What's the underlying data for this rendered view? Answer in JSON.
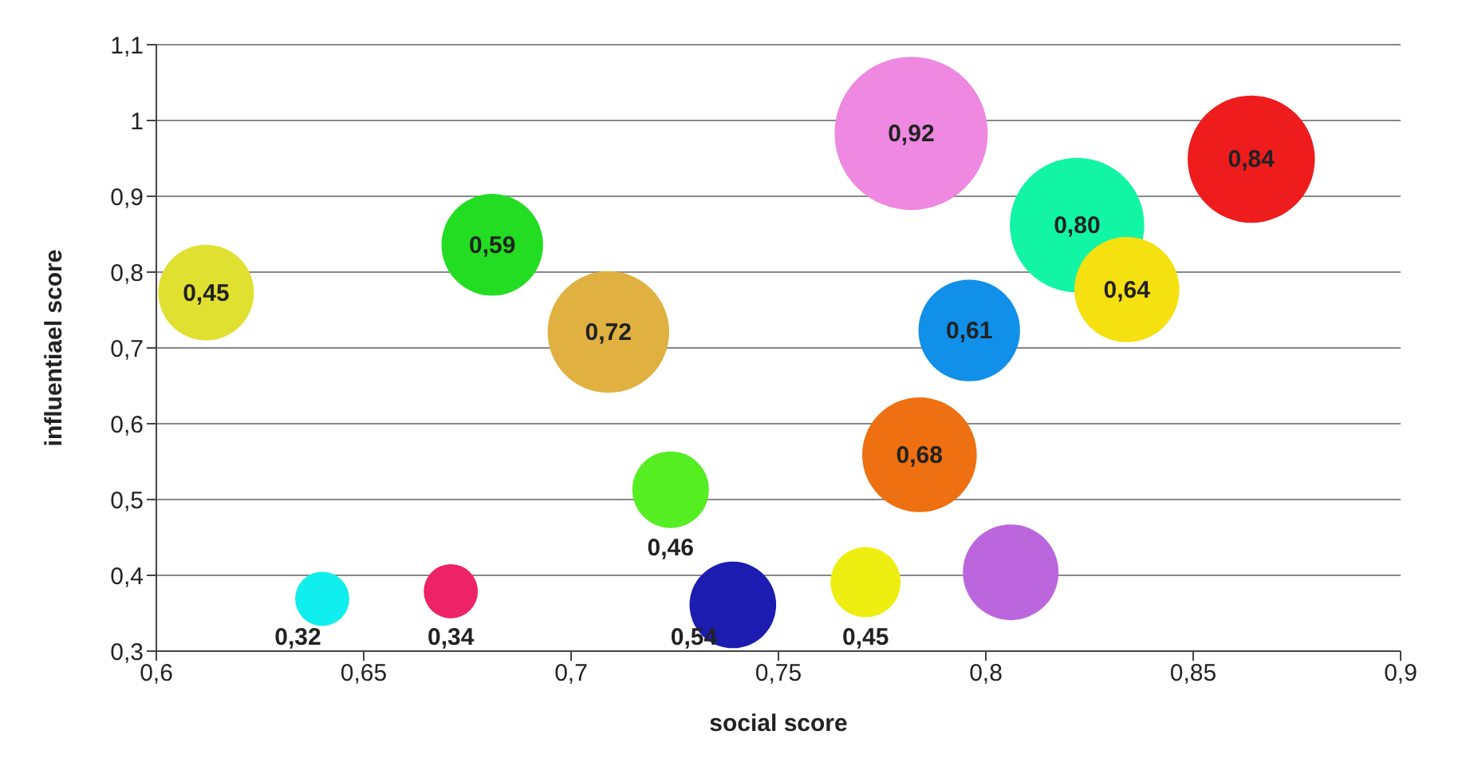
{
  "chart_data": {
    "type": "bubble",
    "xlabel": "social score",
    "ylabel": "influentiael score",
    "x": [
      0.612,
      0.681,
      0.709,
      0.782,
      0.864,
      0.822,
      0.834,
      0.796,
      0.784,
      0.724,
      0.806,
      0.771,
      0.739,
      0.671,
      0.64
    ],
    "values": [
      0.773,
      0.836,
      0.721,
      0.983,
      0.949,
      0.862,
      0.777,
      0.723,
      0.559,
      0.513,
      0.404,
      0.391,
      0.361,
      0.379,
      0.369
    ],
    "sizes": [
      0.39,
      0.44,
      0.63,
      1,
      0.69,
      0.77,
      0.47,
      0.44,
      0.56,
      0.25,
      0.39,
      0.21,
      0.32,
      0.125,
      0.125
    ],
    "colors": [
      "#e0e030",
      "#22dd22",
      "#e0b040",
      "#ee88e0",
      "#ee1c1c",
      "#11f5a5",
      "#f5e010",
      "#1090e8",
      "#ee7010",
      "#55ee22",
      "#bb66dd",
      "#eeee10",
      "#1c1cb0",
      "#ee2266",
      "#11eeee"
    ],
    "annotations": [
      {
        "text": "0,45",
        "x": 0.612,
        "y": 0.773
      },
      {
        "text": "0,59",
        "x": 0.681,
        "y": 0.836
      },
      {
        "text": "0,72",
        "x": 0.709,
        "y": 0.721
      },
      {
        "text": "0,92",
        "x": 0.782,
        "y": 0.983
      },
      {
        "text": "0,84",
        "x": 0.864,
        "y": 0.949
      },
      {
        "text": "0,80",
        "x": 0.822,
        "y": 0.862
      },
      {
        "text": "0,64",
        "x": 0.834,
        "y": 0.777
      },
      {
        "text": "0,61",
        "x": 0.796,
        "y": 0.723
      },
      {
        "text": "0,68",
        "x": 0.784,
        "y": 0.559
      },
      {
        "text": "0,46",
        "x": 0.724,
        "y": 0.513
      },
      {
        "text": "0,45",
        "x": 0.771,
        "y": 0.391
      },
      {
        "text": "0,54",
        "x": 0.739,
        "y": 0.361
      },
      {
        "text": "0,34",
        "x": 0.671,
        "y": 0.379
      },
      {
        "text": "0,32",
        "x": 0.64,
        "y": 0.369
      }
    ],
    "xlim": [
      0.6,
      0.9
    ],
    "xticks": [
      {
        "value": 0.6,
        "label": "0,6"
      },
      {
        "value": 0.65,
        "label": "0,65"
      },
      {
        "value": 0.7,
        "label": "0,7"
      },
      {
        "value": 0.75,
        "label": "0,75"
      },
      {
        "value": 0.8,
        "label": "0,8"
      },
      {
        "value": 0.85,
        "label": "0,85"
      },
      {
        "value": 0.9,
        "label": "0,9"
      }
    ],
    "ylim": [
      0.3,
      1.1
    ],
    "yticks": [
      {
        "value": 0.3,
        "label": "0,3"
      },
      {
        "value": 0.4,
        "label": "0,4"
      },
      {
        "value": 0.5,
        "label": "0,5"
      },
      {
        "value": 0.6,
        "label": "0,6"
      },
      {
        "value": 0.7,
        "label": "0,7"
      },
      {
        "value": 0.8,
        "label": "0,8"
      },
      {
        "value": 0.9,
        "label": "0,9"
      },
      1,
      {
        "value": 1.1,
        "label": "1,1"
      }
    ],
    "grid": "y"
  }
}
